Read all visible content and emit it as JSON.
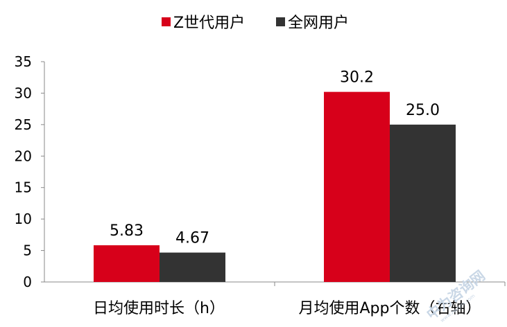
{
  "chart_data": {
    "type": "bar",
    "title": "",
    "xlabel": "",
    "ylabel": "",
    "categories": [
      "日均使用时长（h）",
      "月均使用App个数（右轴）"
    ],
    "series": [
      {
        "name": "Z世代用户",
        "values": [
          5.83,
          30.2
        ],
        "labels": [
          "5.83",
          "30.2"
        ],
        "color": "#d7001a"
      },
      {
        "name": "全网用户",
        "values": [
          4.67,
          25.0
        ],
        "labels": [
          "4.67",
          "25.0"
        ],
        "color": "#333333"
      }
    ],
    "yticks": [
      "0",
      "5",
      "10",
      "15",
      "20",
      "25",
      "30",
      "35"
    ],
    "ylim": [
      0,
      35
    ],
    "legend_position": "top-center",
    "grid": false
  },
  "watermark": {
    "text": "中为咨询网",
    "subtext": "www.zwzyzx.com"
  }
}
